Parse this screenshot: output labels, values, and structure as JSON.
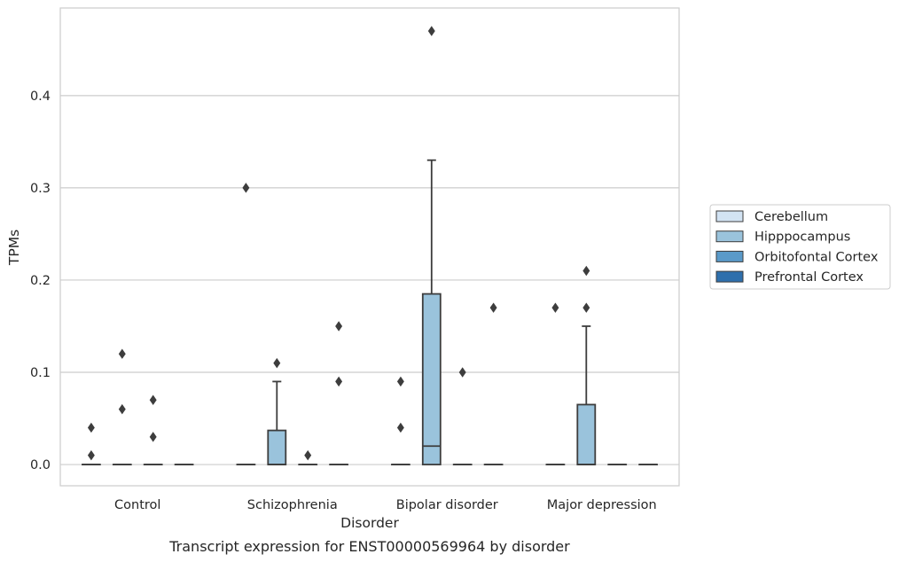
{
  "chart_data": {
    "type": "box",
    "xlabel": "Disorder",
    "ylabel": "TPMs",
    "caption": "Transcript expression for ENST00000569964 by disorder",
    "categories": [
      "Control",
      "Schizophrenia",
      "Bipolar disorder",
      "Major depression"
    ],
    "ylim": [
      -0.023,
      0.495
    ],
    "yticks": [
      0.0,
      0.1,
      0.2,
      0.3,
      0.4
    ],
    "ytick_labels": [
      "0.0",
      "0.1",
      "0.2",
      "0.3",
      "0.4"
    ],
    "grid": "horizontal",
    "legend_position": "right",
    "series": [
      {
        "name": "Cerebellum",
        "color": "#d2e3f3",
        "boxes": [
          {
            "q1": 0,
            "median": 0,
            "q3": 0,
            "whisker_low": 0,
            "whisker_high": 0,
            "outliers": [
              0.01,
              0.04
            ]
          },
          {
            "q1": 0,
            "median": 0,
            "q3": 0,
            "whisker_low": 0,
            "whisker_high": 0,
            "outliers": [
              0.3
            ]
          },
          {
            "q1": 0,
            "median": 0,
            "q3": 0,
            "whisker_low": 0,
            "whisker_high": 0,
            "outliers": [
              0.04,
              0.09
            ]
          },
          {
            "q1": 0,
            "median": 0,
            "q3": 0,
            "whisker_low": 0,
            "whisker_high": 0,
            "outliers": [
              0.17
            ]
          }
        ]
      },
      {
        "name": "Hipppocampus",
        "color": "#9ac3dc",
        "boxes": [
          {
            "q1": 0,
            "median": 0,
            "q3": 0,
            "whisker_low": 0,
            "whisker_high": 0,
            "outliers": [
              0.06,
              0.12
            ]
          },
          {
            "q1": 0,
            "median": 0,
            "q3": 0.037,
            "whisker_low": 0,
            "whisker_high": 0.09,
            "outliers": [
              0.11
            ]
          },
          {
            "q1": 0,
            "median": 0.02,
            "q3": 0.185,
            "whisker_low": 0,
            "whisker_high": 0.33,
            "outliers": [
              0.47
            ]
          },
          {
            "q1": 0,
            "median": 0,
            "q3": 0.065,
            "whisker_low": 0,
            "whisker_high": 0.15,
            "outliers": [
              0.17,
              0.21
            ]
          }
        ]
      },
      {
        "name": "Orbitofontal Cortex",
        "color": "#5a9ac9",
        "boxes": [
          {
            "q1": 0,
            "median": 0,
            "q3": 0,
            "whisker_low": 0,
            "whisker_high": 0,
            "outliers": [
              0.03,
              0.07
            ]
          },
          {
            "q1": 0,
            "median": 0,
            "q3": 0,
            "whisker_low": 0,
            "whisker_high": 0,
            "outliers": [
              0.01
            ]
          },
          {
            "q1": 0,
            "median": 0,
            "q3": 0,
            "whisker_low": 0,
            "whisker_high": 0,
            "outliers": [
              0.1
            ]
          },
          {
            "q1": 0,
            "median": 0,
            "q3": 0,
            "whisker_low": 0,
            "whisker_high": 0,
            "outliers": []
          }
        ]
      },
      {
        "name": "Prefrontal Cortex",
        "color": "#2e6fac",
        "boxes": [
          {
            "q1": 0,
            "median": 0,
            "q3": 0,
            "whisker_low": 0,
            "whisker_high": 0,
            "outliers": []
          },
          {
            "q1": 0,
            "median": 0,
            "q3": 0,
            "whisker_low": 0,
            "whisker_high": 0,
            "outliers": [
              0.09,
              0.15
            ]
          },
          {
            "q1": 0,
            "median": 0,
            "q3": 0,
            "whisker_low": 0,
            "whisker_high": 0,
            "outliers": [
              0.17
            ]
          },
          {
            "q1": 0,
            "median": 0,
            "q3": 0,
            "whisker_low": 0,
            "whisker_high": 0,
            "outliers": []
          }
        ]
      }
    ]
  }
}
